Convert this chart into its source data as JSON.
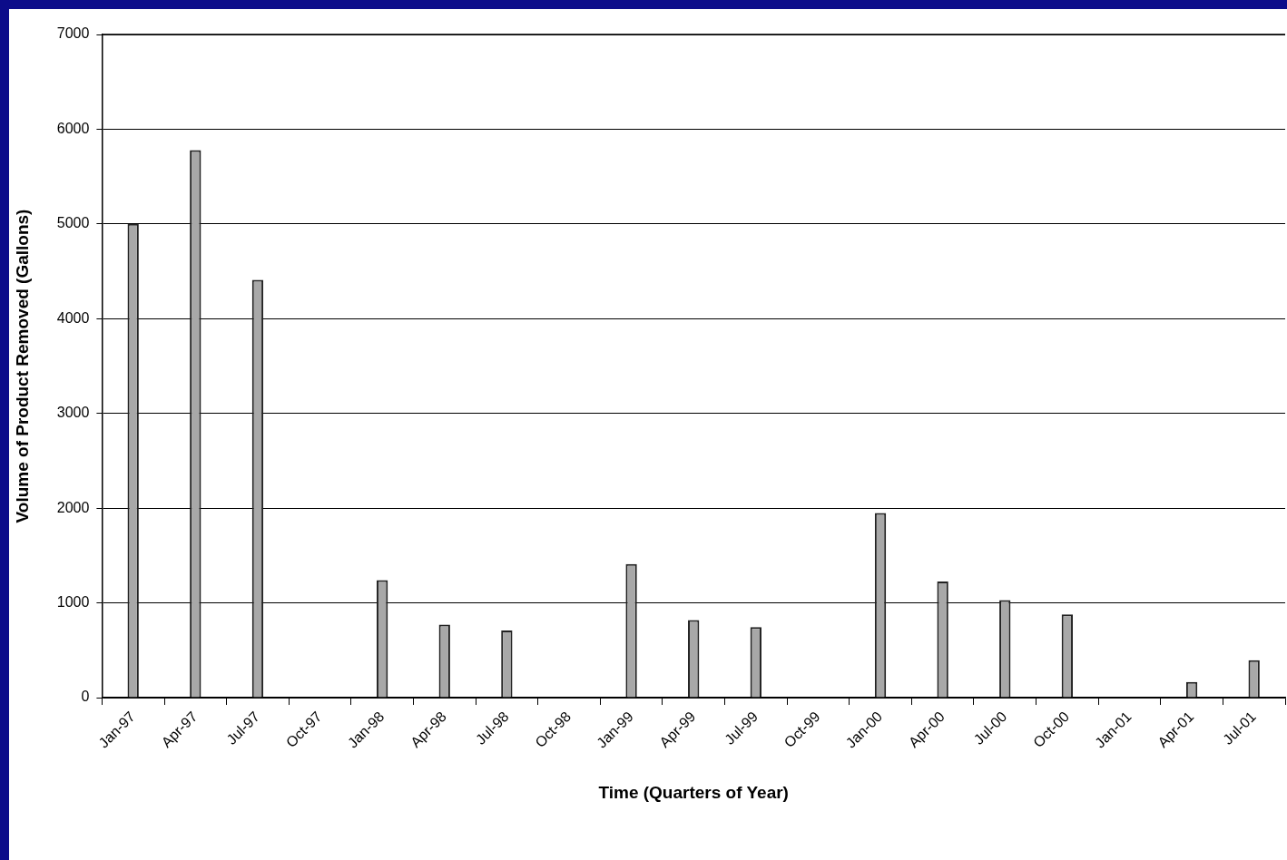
{
  "chart_data": {
    "type": "bar",
    "xlabel": "Time (Quarters of Year)",
    "ylabel": "Volume of Product Removed (Gallons)",
    "categories": [
      "Jan-97",
      "Apr-97",
      "Jul-97",
      "Oct-97",
      "Jan-98",
      "Apr-98",
      "Jul-98",
      "Oct-98",
      "Jan-99",
      "Apr-99",
      "Jul-99",
      "Oct-99",
      "Jan-00",
      "Apr-00",
      "Jul-00",
      "Oct-00",
      "Jan-01",
      "Apr-01",
      "Jul-01"
    ],
    "values": [
      5000,
      5780,
      4410,
      0,
      1240,
      770,
      710,
      0,
      1410,
      820,
      745,
      0,
      1950,
      1225,
      1030,
      880,
      0,
      165,
      395
    ],
    "color": "#a8a8a8",
    "ylim": [
      0,
      7000
    ],
    "yticks": [
      0,
      1000,
      2000,
      3000,
      4000,
      5000,
      6000,
      7000
    ],
    "grid": "y",
    "legend": false
  }
}
